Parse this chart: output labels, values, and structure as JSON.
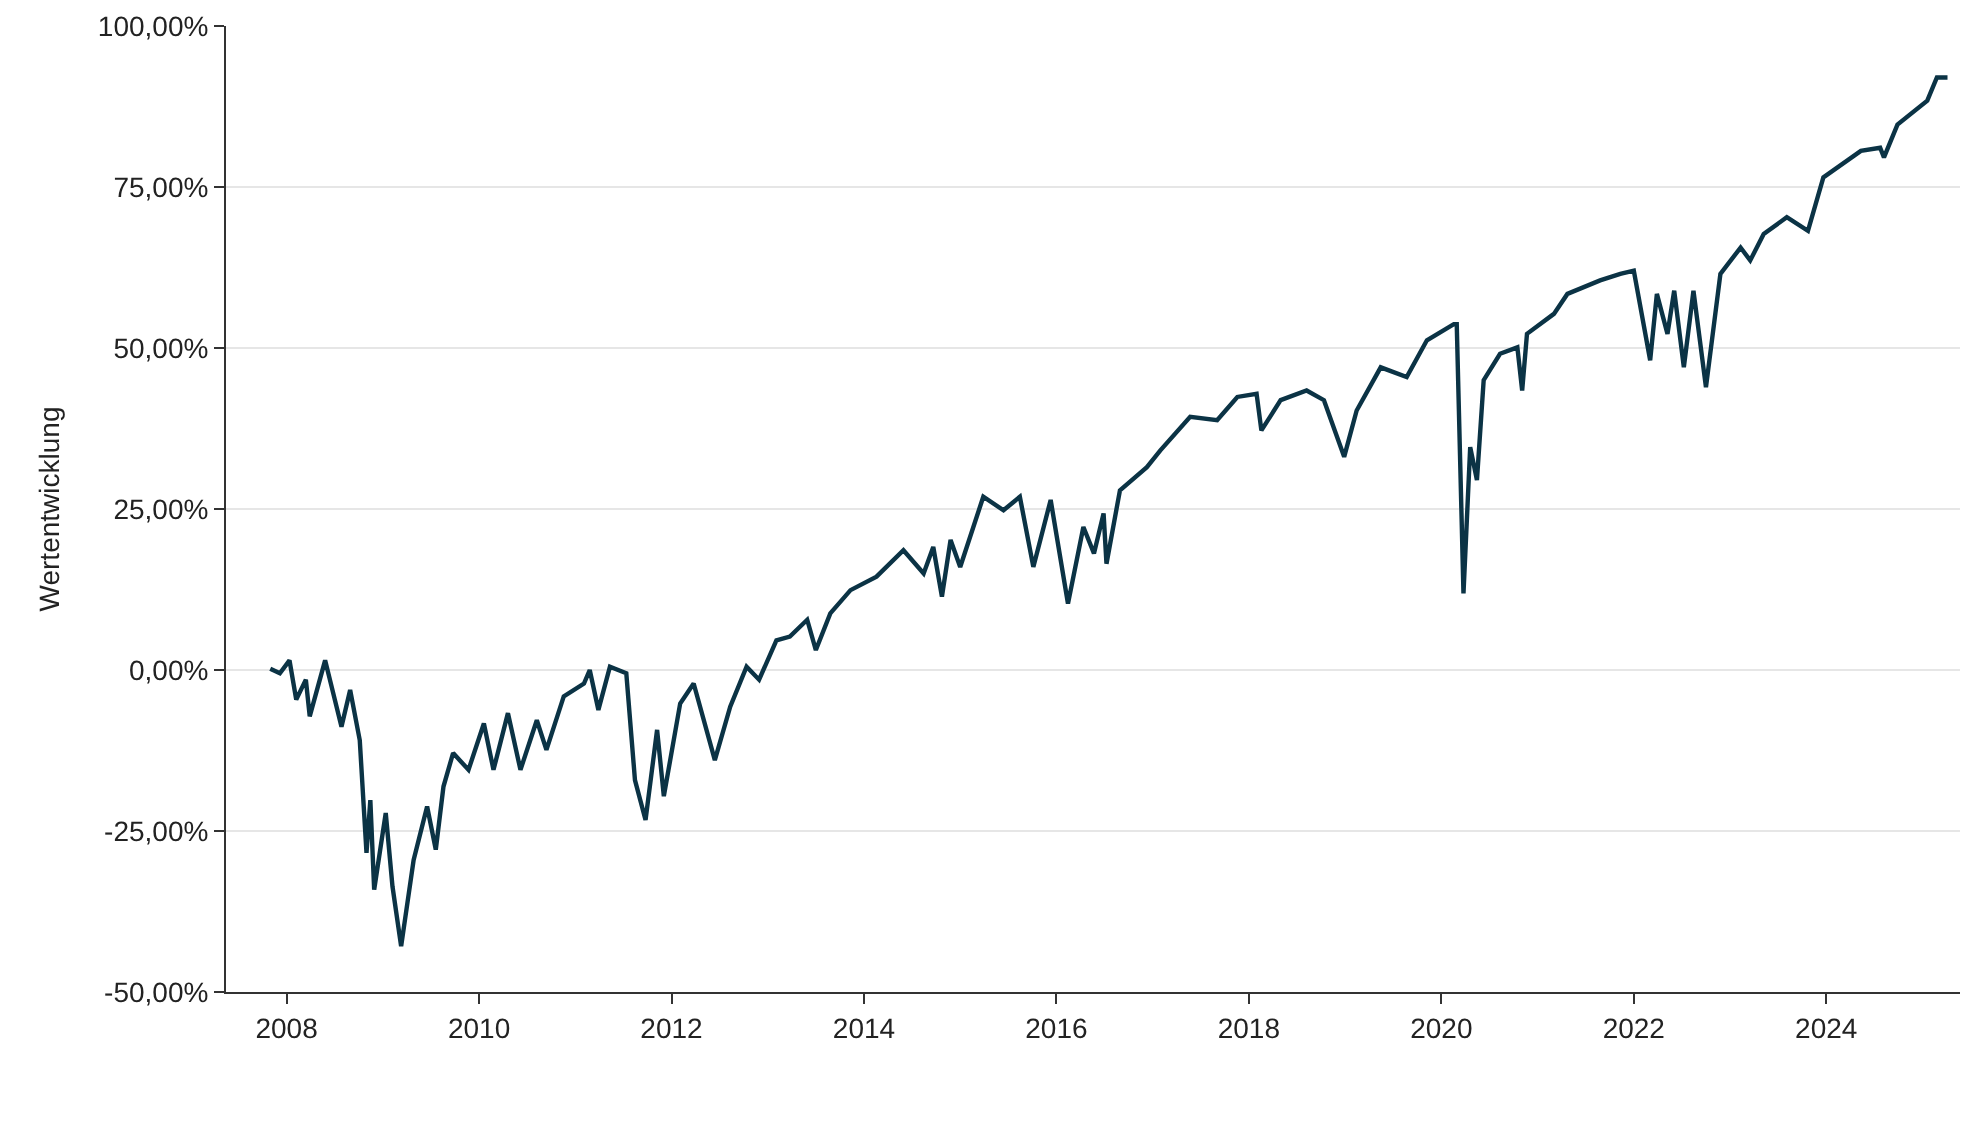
{
  "chart_data": {
    "type": "line",
    "ylabel": "Wertentwicklung",
    "xlim": [
      2007.37,
      2025.39
    ],
    "xticks": [
      2008,
      2010,
      2012,
      2014,
      2016,
      2018,
      2020,
      2022,
      2024
    ],
    "ylim": [
      -50,
      100
    ],
    "yticks": [
      {
        "value": -50,
        "label": "-50,00%"
      },
      {
        "value": -25,
        "label": "-25,00%"
      },
      {
        "value": 0,
        "label": "0,00%"
      },
      {
        "value": 25,
        "label": "25,00%"
      },
      {
        "value": 50,
        "label": "50,00%"
      },
      {
        "value": 75,
        "label": "75,00%"
      },
      {
        "value": 100,
        "label": "100,00%"
      }
    ],
    "grid": "y",
    "marker": "none",
    "line_style": "solid",
    "series": [
      {
        "color": "#0b3345",
        "x": [
          2007.83,
          2007.93,
          2008.03,
          2008.1,
          2008.2,
          2008.24,
          2008.4,
          2008.57,
          2008.66,
          2008.76,
          2008.83,
          2008.87,
          2008.91,
          2009.03,
          2009.1,
          2009.19,
          2009.32,
          2009.46,
          2009.55,
          2009.63,
          2009.73,
          2009.89,
          2010.05,
          2010.15,
          2010.3,
          2010.43,
          2010.6,
          2010.7,
          2010.88,
          2011.09,
          2011.15,
          2011.24,
          2011.36,
          2011.53,
          2011.62,
          2011.73,
          2011.85,
          2011.92,
          2012.09,
          2012.23,
          2012.45,
          2012.61,
          2012.78,
          2012.91,
          2013.09,
          2013.23,
          2013.41,
          2013.5,
          2013.65,
          2013.86,
          2014.13,
          2014.41,
          2014.62,
          2014.72,
          2014.81,
          2014.9,
          2015.0,
          2015.24,
          2015.45,
          2015.62,
          2015.76,
          2015.94,
          2016.12,
          2016.28,
          2016.39,
          2016.49,
          2016.52,
          2016.66,
          2016.94,
          2017.08,
          2017.39,
          2017.67,
          2017.88,
          2018.08,
          2018.13,
          2018.33,
          2018.6,
          2018.78,
          2018.99,
          2019.12,
          2019.37,
          2019.64,
          2019.85,
          2020.13,
          2020.16,
          2020.23,
          2020.3,
          2020.37,
          2020.44,
          2020.61,
          2020.79,
          2020.84,
          2020.89,
          2021.17,
          2021.31,
          2021.65,
          2021.86,
          2022.0,
          2022.17,
          2022.24,
          2022.35,
          2022.42,
          2022.52,
          2022.62,
          2022.75,
          2022.9,
          2023.11,
          2023.21,
          2023.35,
          2023.59,
          2023.81,
          2023.97,
          2024.36,
          2024.56,
          2024.6,
          2024.74,
          2025.05,
          2025.15,
          2025.26
        ],
        "values": [
          0.2,
          -0.5,
          1.5,
          -4.6,
          -1.5,
          -7.2,
          1.5,
          -8.8,
          -3.1,
          -10.9,
          -28.4,
          -20.2,
          -34.1,
          -22.2,
          -33.6,
          -42.9,
          -29.5,
          -21.2,
          -27.9,
          -18.1,
          -12.9,
          -15.5,
          -8.3,
          -15.5,
          -6.7,
          -15.5,
          -7.8,
          -12.4,
          -4.1,
          -2.1,
          0,
          -6.2,
          0.5,
          -0.5,
          -17.1,
          -23.3,
          -9.3,
          -19.6,
          -5.2,
          -2.1,
          -14.0,
          -5.7,
          0.5,
          -1.5,
          4.6,
          5.2,
          7.8,
          3.1,
          8.8,
          12.4,
          14.5,
          18.6,
          15.0,
          19.1,
          11.4,
          20.2,
          16.0,
          26.9,
          24.8,
          26.9,
          16.0,
          26.4,
          10.3,
          22.2,
          18.1,
          24.3,
          16.5,
          27.9,
          31.5,
          34.1,
          39.3,
          38.8,
          42.4,
          42.9,
          37.2,
          41.9,
          43.4,
          41.9,
          33.1,
          40.3,
          47.0,
          45.5,
          51.2,
          53.7,
          53.7,
          11.9,
          34.6,
          29.5,
          45.0,
          49.1,
          50.1,
          43.4,
          52.2,
          55.3,
          58.4,
          60.5,
          61.5,
          62.0,
          48.1,
          58.4,
          52.2,
          58.9,
          47.0,
          58.9,
          43.9,
          61.5,
          65.6,
          63.6,
          67.7,
          70.3,
          68.2,
          76.5,
          80.6,
          81.1,
          79.6,
          84.7,
          88.4,
          92.0,
          92.0
        ]
      }
    ]
  }
}
